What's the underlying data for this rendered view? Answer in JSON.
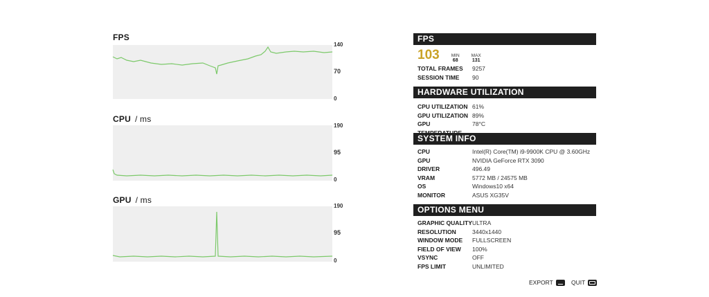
{
  "graphs": {
    "fps": {
      "title": "FPS",
      "unit": "",
      "ticks": [
        "140",
        "70",
        "0"
      ]
    },
    "cpu": {
      "title": "CPU",
      "unit": "/ ms",
      "ticks": [
        "190",
        "95",
        "0"
      ]
    },
    "gpu": {
      "title": "GPU",
      "unit": "/ ms",
      "ticks": [
        "190",
        "95",
        "0"
      ]
    }
  },
  "fps_section": {
    "header": "FPS",
    "current": "103",
    "min_label": "MIN",
    "min_value": "68",
    "max_label": "MAX",
    "max_value": "131",
    "rows": [
      {
        "key": "TOTAL FRAMES",
        "value": "9257"
      },
      {
        "key": "SESSION TIME",
        "value": "90"
      }
    ]
  },
  "hardware": {
    "header": "HARDWARE UTILIZATION",
    "rows": [
      {
        "key": "CPU UTILIZATION",
        "value": "61%"
      },
      {
        "key": "GPU UTILIZATION",
        "value": "89%"
      },
      {
        "key": "GPU TEMPERATURE",
        "value": "78°C"
      }
    ]
  },
  "system": {
    "header": "SYSTEM INFO",
    "rows": [
      {
        "key": "CPU",
        "value": "Intel(R) Core(TM) i9-9900K CPU @ 3.60GHz"
      },
      {
        "key": "GPU",
        "value": "NVIDIA GeForce RTX 3090"
      },
      {
        "key": "DRIVER",
        "value": "496.49"
      },
      {
        "key": "VRAM",
        "value": "5772 MB / 24575 MB"
      },
      {
        "key": "OS",
        "value": "Windows10 x64"
      },
      {
        "key": "MONITOR",
        "value": "ASUS XG35V"
      }
    ]
  },
  "options": {
    "header": "OPTIONS MENU",
    "rows": [
      {
        "key": "GRAPHIC QUALITY",
        "value": "ULTRA"
      },
      {
        "key": "RESOLUTION",
        "value": "3440x1440"
      },
      {
        "key": "WINDOW MODE",
        "value": "FULLSCREEN"
      },
      {
        "key": "FIELD OF VIEW",
        "value": "100%"
      },
      {
        "key": "VSYNC",
        "value": "OFF"
      },
      {
        "key": "FPS LIMIT",
        "value": "UNLIMITED"
      }
    ]
  },
  "footer": {
    "export_label": "EXPORT",
    "quit_label": "QUIT"
  },
  "colors": {
    "line": "#7cc96a",
    "header_bg": "#1f1f1f",
    "fps_accent": "#c9a227",
    "plot_bg": "#efefef"
  },
  "icons": {
    "export": "export-icon",
    "quit": "quit-icon"
  }
}
